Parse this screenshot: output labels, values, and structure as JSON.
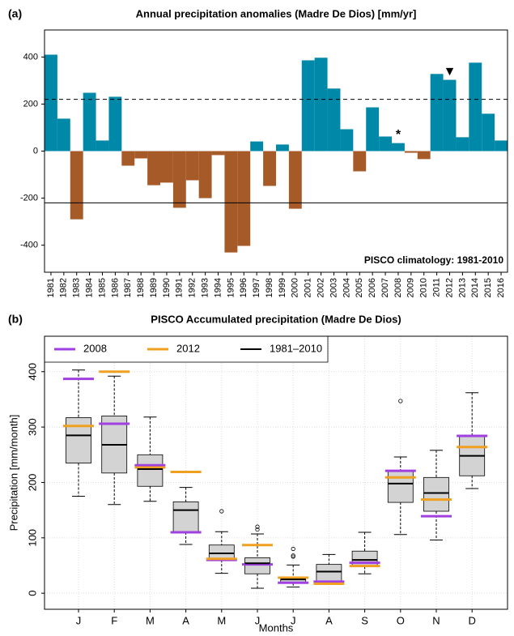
{
  "chart_data": [
    {
      "type": "bar",
      "panel_label": "(a)",
      "title": "Annual precipitation anomalies (Madre De Dios) [mm/yr]",
      "categories": [
        "1981",
        "1982",
        "1983",
        "1984",
        "1985",
        "1986",
        "1987",
        "1988",
        "1989",
        "1990",
        "1991",
        "1992",
        "1993",
        "1994",
        "1995",
        "1996",
        "1997",
        "1998",
        "1999",
        "2000",
        "2001",
        "2002",
        "2003",
        "2004",
        "2005",
        "2006",
        "2007",
        "2008",
        "2009",
        "2010",
        "2011",
        "2012",
        "2013",
        "2014",
        "2015",
        "2016"
      ],
      "values": [
        410,
        138,
        -290,
        248,
        45,
        231,
        -62,
        -31,
        -145,
        -134,
        -241,
        -124,
        -200,
        -17,
        -431,
        -403,
        41,
        -148,
        28,
        -245,
        386,
        397,
        266,
        93,
        -86,
        186,
        62,
        34,
        -7,
        -34,
        328,
        303,
        59,
        376,
        159,
        45
      ],
      "positive_color": "#0088a8",
      "negative_color": "#a55a28",
      "ylim": [
        -515,
        515
      ],
      "yticks": [
        -400,
        -200,
        0,
        200,
        400
      ],
      "hlines": [
        {
          "value": 220,
          "style": "dashed"
        },
        {
          "value": -220,
          "style": "solid"
        }
      ],
      "annotations": [
        {
          "text": "*",
          "category": "2008"
        },
        {
          "text": "▼",
          "category": "2012"
        }
      ],
      "note": "PISCO climatology: 1981-2010"
    },
    {
      "type": "box",
      "panel_label": "(b)",
      "title": "PISCO Accumulated precipitation (Madre De Dios)",
      "x_label": "Months",
      "y_label": "Precipitation [mm/month]",
      "categories": [
        "J",
        "F",
        "M",
        "A",
        "M",
        "J",
        "J",
        "A",
        "S",
        "O",
        "N",
        "D"
      ],
      "boxes": [
        {
          "low": 175,
          "q1": 235,
          "median": 285,
          "q3": 317,
          "high": 403,
          "outliers": []
        },
        {
          "low": 160,
          "q1": 217,
          "median": 268,
          "q3": 320,
          "high": 392,
          "outliers": []
        },
        {
          "low": 166,
          "q1": 193,
          "median": 224,
          "q3": 250,
          "high": 318,
          "outliers": []
        },
        {
          "low": 88,
          "q1": 110,
          "median": 150,
          "q3": 165,
          "high": 191,
          "outliers": []
        },
        {
          "low": 36,
          "q1": 60,
          "median": 72,
          "q3": 87,
          "high": 111,
          "outliers": [
            148
          ]
        },
        {
          "low": 9,
          "q1": 35,
          "median": 54,
          "q3": 64,
          "high": 107,
          "outliers": [
            115,
            120
          ]
        },
        {
          "low": 11,
          "q1": 18,
          "median": 25,
          "q3": 29,
          "high": 51,
          "outliers": [
            66,
            68,
            80
          ]
        },
        {
          "low": 17,
          "q1": 20,
          "median": 39,
          "q3": 52,
          "high": 70,
          "outliers": []
        },
        {
          "low": 35,
          "q1": 48,
          "median": 60,
          "q3": 76,
          "high": 110,
          "outliers": []
        },
        {
          "low": 106,
          "q1": 164,
          "median": 198,
          "q3": 220,
          "high": 246,
          "outliers": [
            347
          ]
        },
        {
          "low": 96,
          "q1": 148,
          "median": 181,
          "q3": 209,
          "high": 258,
          "outliers": []
        },
        {
          "low": 189,
          "q1": 212,
          "median": 248,
          "q3": 283,
          "high": 362,
          "outliers": []
        }
      ],
      "box_color": "#d3d3d3",
      "series": [
        {
          "name": "2008",
          "color": "#a040e0",
          "values": [
            387,
            306,
            231,
            110,
            60,
            52,
            19,
            21,
            55,
            221,
            139,
            284
          ]
        },
        {
          "name": "2012",
          "color": "#f0a020",
          "values": [
            302,
            400,
            227,
            219,
            62,
            87,
            28,
            17,
            49,
            209,
            169,
            264
          ]
        }
      ],
      "box_legend": {
        "name": "1981–2010",
        "color": "#000000"
      },
      "ylim": [
        -29,
        464
      ],
      "yticks": [
        0,
        100,
        200,
        300,
        400
      ],
      "grid": true
    }
  ]
}
